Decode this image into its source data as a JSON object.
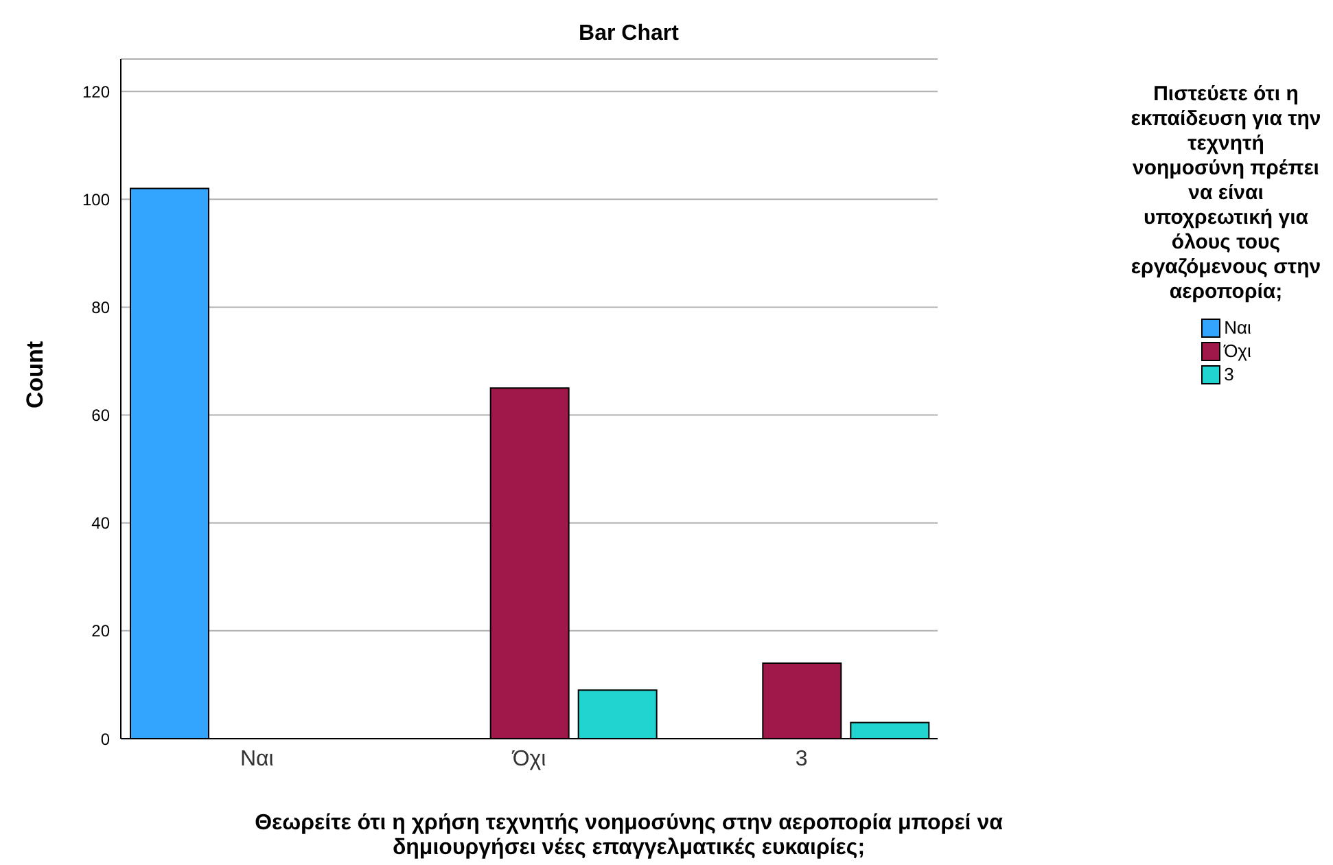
{
  "chart_data": {
    "type": "bar",
    "title": "Bar Chart",
    "xlabel": "Θεωρείτε ότι η χρήση τεχνητής νοημοσύνης στην αεροπορία μπορεί να δημιουργήσει νέες επαγγελματικές ευκαιρίες;",
    "ylabel": "Count",
    "legend_title": "Πιστεύετε ότι η εκπαίδευση για την τεχνητή νοημοσύνη πρέπει να είναι υποχρεωτική για όλους τους εργαζόμενους στην αεροπορία;",
    "categories": [
      "Ναι",
      "Όχι",
      "3"
    ],
    "series": [
      {
        "name": "Ναι",
        "color": "#33a5ff",
        "values": [
          102,
          null,
          null
        ]
      },
      {
        "name": "Όχι",
        "color": "#a0184a",
        "values": [
          null,
          65,
          14
        ]
      },
      {
        "name": "3",
        "color": "#21d4d0",
        "values": [
          null,
          9,
          3
        ]
      }
    ],
    "ylim": [
      0,
      126
    ],
    "yticks": [
      0,
      20,
      40,
      60,
      80,
      100,
      120
    ],
    "grid": "y",
    "legend": "right"
  }
}
